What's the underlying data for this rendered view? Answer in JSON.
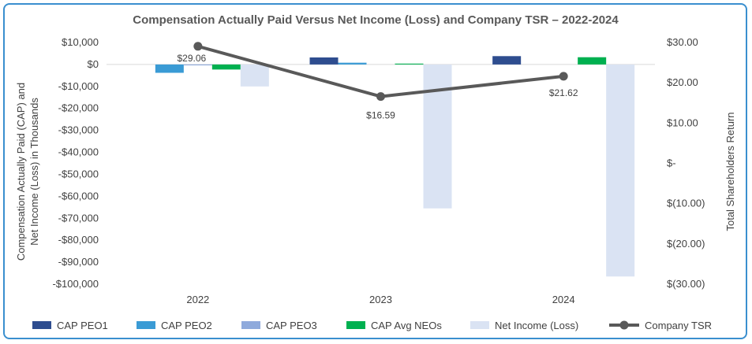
{
  "chart_data": {
    "type": "bar",
    "title": "Compensation Actually Paid Versus Net Income (Loss) and Company TSR – 2022-2024",
    "categories": [
      "2022",
      "2023",
      "2024"
    ],
    "ylabel_line1": "Compensation Actually Paid (CAP) and",
    "ylabel_line2": "Net Income (Loss)  in Thousands",
    "y2label": "Total Shareholders Return",
    "ylim": [
      -100000,
      10000
    ],
    "y_ticks": [
      {
        "value": 10000,
        "label": "$10,000"
      },
      {
        "value": 0,
        "label": "$0"
      },
      {
        "value": -10000,
        "label": "-$10,000"
      },
      {
        "value": -20000,
        "label": "-$20,000"
      },
      {
        "value": -30000,
        "label": "-$30,000"
      },
      {
        "value": -40000,
        "label": "-$40,000"
      },
      {
        "value": -50000,
        "label": "-$50,000"
      },
      {
        "value": -60000,
        "label": "-$60,000"
      },
      {
        "value": -70000,
        "label": "-$70,000"
      },
      {
        "value": -80000,
        "label": "-$80,000"
      },
      {
        "value": -90000,
        "label": "-$90,000"
      },
      {
        "value": -100000,
        "label": "-$100,000"
      }
    ],
    "y2lim": [
      -30,
      30
    ],
    "y2_ticks": [
      {
        "value": 30,
        "label": "$30.00"
      },
      {
        "value": 20,
        "label": "$20.00"
      },
      {
        "value": 10,
        "label": "$10.00"
      },
      {
        "value": 0,
        "label": "$-"
      },
      {
        "value": -10,
        "label": "$(10.00)"
      },
      {
        "value": -20,
        "label": "$(20.00)"
      },
      {
        "value": -30,
        "label": "$(30.00)"
      }
    ],
    "series": [
      {
        "name": "CAP PEO1",
        "color": "#2e4d8f",
        "values": [
          null,
          3200,
          3800
        ]
      },
      {
        "name": "CAP PEO2",
        "color": "#3a9bd5",
        "values": [
          -3800,
          800,
          null
        ]
      },
      {
        "name": "CAP PEO3",
        "color": "#8faadc",
        "values": [
          -400,
          null,
          null
        ]
      },
      {
        "name": "CAP Avg NEOs",
        "color": "#00b050",
        "values": [
          -2300,
          400,
          3300
        ]
      },
      {
        "name": "Net Income (Loss)",
        "color": "#dae3f3",
        "values": [
          -10000,
          -65500,
          -96500
        ]
      }
    ],
    "line_series": {
      "name": "Company TSR",
      "color": "#595959",
      "values": [
        29.06,
        16.59,
        21.62
      ],
      "labels": [
        "$29.06",
        "$16.59",
        "$21.62"
      ]
    }
  }
}
